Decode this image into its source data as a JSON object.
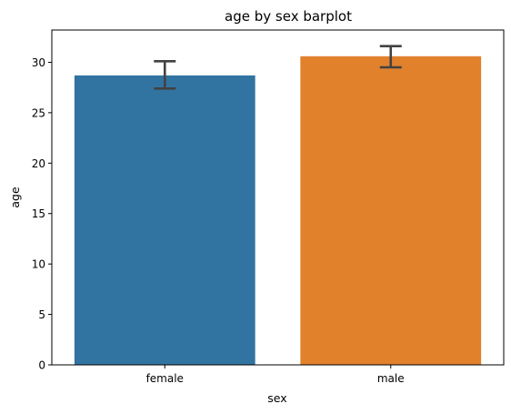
{
  "chart_data": {
    "type": "bar",
    "title": "age by sex barplot",
    "xlabel": "sex",
    "ylabel": "age",
    "categories": [
      "female",
      "male"
    ],
    "values": [
      28.7,
      30.6
    ],
    "error_bars": [
      {
        "low": 27.4,
        "high": 30.1
      },
      {
        "low": 29.5,
        "high": 31.6
      }
    ],
    "ylim": [
      0,
      33.2
    ],
    "yticks": [
      0,
      5,
      10,
      15,
      20,
      25,
      30
    ],
    "ytick_labels": [
      "0",
      "5",
      "10",
      "15",
      "20",
      "25",
      "30"
    ],
    "grid": false,
    "colors": [
      "#3274a1",
      "#e1812c"
    ],
    "errorbar_color": "#424242"
  }
}
